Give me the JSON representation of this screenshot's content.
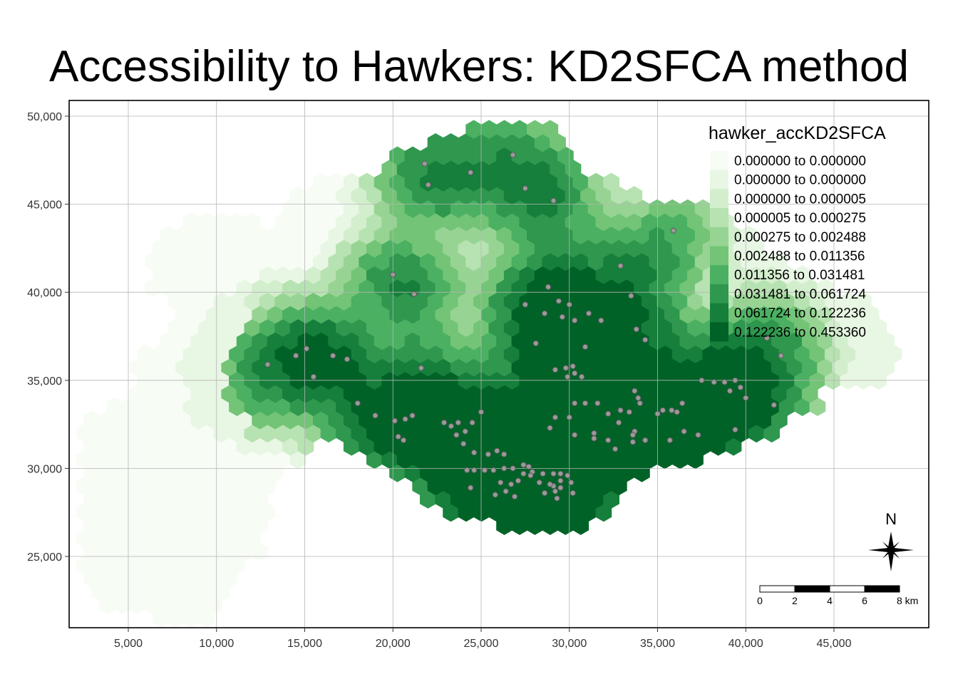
{
  "title": "Accessibility to Hawkers: KD2SFCA method",
  "axes": {
    "x_ticks": [
      {
        "value": 5000,
        "label": "5,000"
      },
      {
        "value": 10000,
        "label": "10,000"
      },
      {
        "value": 15000,
        "label": "15,000"
      },
      {
        "value": 20000,
        "label": "20,000"
      },
      {
        "value": 25000,
        "label": "25,000"
      },
      {
        "value": 30000,
        "label": "30,000"
      },
      {
        "value": 35000,
        "label": "35,000"
      },
      {
        "value": 40000,
        "label": "40,000"
      },
      {
        "value": 45000,
        "label": "45,000"
      }
    ],
    "y_ticks": [
      {
        "value": 25000,
        "label": "25,000"
      },
      {
        "value": 30000,
        "label": "30,000"
      },
      {
        "value": 35000,
        "label": "35,000"
      },
      {
        "value": 40000,
        "label": "40,000"
      },
      {
        "value": 45000,
        "label": "45,000"
      },
      {
        "value": 50000,
        "label": "50,000"
      }
    ],
    "x_range": [
      2000,
      50000
    ],
    "y_range": [
      21000,
      51000
    ],
    "grid": true
  },
  "legend": {
    "title": "hawker_accKD2SFCA",
    "placement": "top-right",
    "classes": [
      {
        "label": "0.000000 to 0.000000",
        "color": "#f7fcf5"
      },
      {
        "label": "0.000000 to 0.000000",
        "color": "#e8f6e4"
      },
      {
        "label": "0.000000 to 0.000005",
        "color": "#d3eecd"
      },
      {
        "label": "0.000005 to 0.000275",
        "color": "#b7e2b1"
      },
      {
        "label": "0.000275 to 0.002488",
        "color": "#97d494"
      },
      {
        "label": "0.002488 to 0.011356",
        "color": "#73c476"
      },
      {
        "label": "0.011356 to 0.031481",
        "color": "#4bb062"
      },
      {
        "label": "0.031481 to 0.061724",
        "color": "#2f974e"
      },
      {
        "label": "0.061724 to 0.122236",
        "color": "#157f3b"
      },
      {
        "label": "0.122236 to 0.453360",
        "color": "#006227"
      }
    ]
  },
  "north_arrow": {
    "label": "N"
  },
  "scale_bar": {
    "labels": [
      "0",
      "2",
      "4",
      "6",
      "8 km"
    ]
  },
  "hawker_points": [
    [
      21800,
      47300
    ],
    [
      22000,
      46100
    ],
    [
      24400,
      46800
    ],
    [
      26800,
      47800
    ],
    [
      27500,
      45900
    ],
    [
      29100,
      45200
    ],
    [
      20000,
      41000
    ],
    [
      21200,
      39900
    ],
    [
      32900,
      41500
    ],
    [
      35900,
      43500
    ],
    [
      33500,
      39800
    ],
    [
      28800,
      40300
    ],
    [
      29400,
      39500
    ],
    [
      30000,
      39300
    ],
    [
      27500,
      39300
    ],
    [
      28600,
      38800
    ],
    [
      29600,
      38600
    ],
    [
      30300,
      38400
    ],
    [
      31100,
      38800
    ],
    [
      31800,
      38400
    ],
    [
      33800,
      37900
    ],
    [
      34300,
      37300
    ],
    [
      28100,
      37100
    ],
    [
      30900,
      36900
    ],
    [
      12900,
      35900
    ],
    [
      14500,
      36400
    ],
    [
      15100,
      36800
    ],
    [
      15500,
      35200
    ],
    [
      16600,
      36400
    ],
    [
      17400,
      36200
    ],
    [
      21600,
      35700
    ],
    [
      29200,
      35600
    ],
    [
      29800,
      35700
    ],
    [
      30200,
      35800
    ],
    [
      30300,
      35400
    ],
    [
      30700,
      35200
    ],
    [
      29900,
      35200
    ],
    [
      41200,
      37400
    ],
    [
      42000,
      36400
    ],
    [
      37500,
      35000
    ],
    [
      38200,
      34900
    ],
    [
      38800,
      34900
    ],
    [
      39400,
      35000
    ],
    [
      39100,
      34400
    ],
    [
      39700,
      34600
    ],
    [
      40000,
      34000
    ],
    [
      41600,
      33600
    ],
    [
      36400,
      33700
    ],
    [
      35800,
      33300
    ],
    [
      35300,
      33300
    ],
    [
      33700,
      34400
    ],
    [
      33900,
      34000
    ],
    [
      34000,
      33700
    ],
    [
      33400,
      33200
    ],
    [
      32900,
      33300
    ],
    [
      32200,
      33100
    ],
    [
      31600,
      33700
    ],
    [
      30900,
      33700
    ],
    [
      30300,
      33700
    ],
    [
      30000,
      32900
    ],
    [
      29200,
      32900
    ],
    [
      28900,
      32300
    ],
    [
      32800,
      32600
    ],
    [
      33700,
      32100
    ],
    [
      35000,
      33100
    ],
    [
      36100,
      33200
    ],
    [
      36500,
      32100
    ],
    [
      35700,
      31600
    ],
    [
      37300,
      31900
    ],
    [
      39400,
      32200
    ],
    [
      18000,
      33700
    ],
    [
      19000,
      33000
    ],
    [
      20100,
      32700
    ],
    [
      20700,
      32800
    ],
    [
      21100,
      33000
    ],
    [
      20300,
      31800
    ],
    [
      20600,
      31600
    ],
    [
      25000,
      33200
    ],
    [
      22900,
      32600
    ],
    [
      23300,
      32400
    ],
    [
      23700,
      32600
    ],
    [
      24100,
      32100
    ],
    [
      24500,
      32600
    ],
    [
      23600,
      31900
    ],
    [
      24000,
      31400
    ],
    [
      24600,
      30900
    ],
    [
      30300,
      31900
    ],
    [
      31400,
      32000
    ],
    [
      31400,
      31700
    ],
    [
      32200,
      31600
    ],
    [
      33600,
      31900
    ],
    [
      32600,
      31100
    ],
    [
      33600,
      31500
    ],
    [
      34300,
      31600
    ],
    [
      25400,
      30800
    ],
    [
      25900,
      31000
    ],
    [
      26300,
      30800
    ],
    [
      25700,
      29900
    ],
    [
      26300,
      30000
    ],
    [
      26800,
      30000
    ],
    [
      27400,
      30200
    ],
    [
      27700,
      30100
    ],
    [
      27900,
      29800
    ],
    [
      28500,
      29700
    ],
    [
      29100,
      29700
    ],
    [
      29500,
      29700
    ],
    [
      29900,
      29600
    ],
    [
      29100,
      29000
    ],
    [
      29500,
      29300
    ],
    [
      28900,
      29100
    ],
    [
      29200,
      28700
    ],
    [
      29500,
      28900
    ],
    [
      30100,
      29200
    ],
    [
      24200,
      29900
    ],
    [
      24600,
      29900
    ],
    [
      25200,
      29900
    ],
    [
      26100,
      29200
    ],
    [
      26700,
      29100
    ],
    [
      27100,
      29300
    ],
    [
      27400,
      29700
    ],
    [
      27800,
      29600
    ],
    [
      28300,
      29200
    ],
    [
      24400,
      28900
    ],
    [
      25800,
      28500
    ],
    [
      26400,
      28700
    ],
    [
      26900,
      28400
    ],
    [
      28600,
      28600
    ],
    [
      29300,
      28300
    ],
    [
      30200,
      28600
    ]
  ]
}
